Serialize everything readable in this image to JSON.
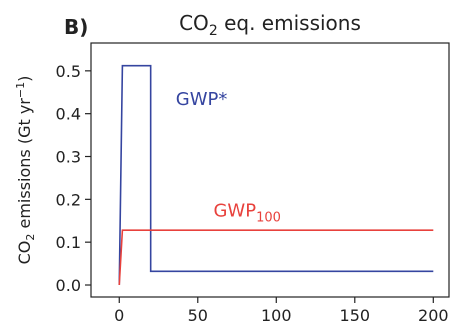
{
  "chart_data": {
    "type": "line",
    "panel_label": "B)",
    "title": {
      "main": "CO",
      "sub": "2",
      "rest": " eq. emissions"
    },
    "ylabel": {
      "main": "CO",
      "sub": "2",
      "rest": " emissions (Gt yr",
      "sup": "−1",
      "close": ")"
    },
    "xlabel": "",
    "xlim": [
      -18,
      210
    ],
    "ylim": [
      -0.028,
      0.565
    ],
    "xticks": [
      0,
      50,
      100,
      150,
      200
    ],
    "xtick_labels": [
      "0",
      "50",
      "100",
      "150",
      "200"
    ],
    "yticks": [
      0.0,
      0.1,
      0.2,
      0.3,
      0.4,
      0.5
    ],
    "ytick_labels": [
      "0.0",
      "0.1",
      "0.2",
      "0.3",
      "0.4",
      "0.5"
    ],
    "grid": false,
    "legend": "inline labels",
    "series": [
      {
        "name": "GWP*",
        "label": {
          "main": "GWP*",
          "sub": ""
        },
        "color": "#3545a0",
        "x": [
          0,
          2,
          20,
          20.01,
          200
        ],
        "y": [
          0.0,
          0.512,
          0.512,
          0.032,
          0.032
        ]
      },
      {
        "name": "GWP100",
        "label": {
          "main": "GWP",
          "sub": "100"
        },
        "color": "#e8413c",
        "x": [
          0,
          2,
          200
        ],
        "y": [
          0.0,
          0.128,
          0.128
        ]
      }
    ]
  }
}
